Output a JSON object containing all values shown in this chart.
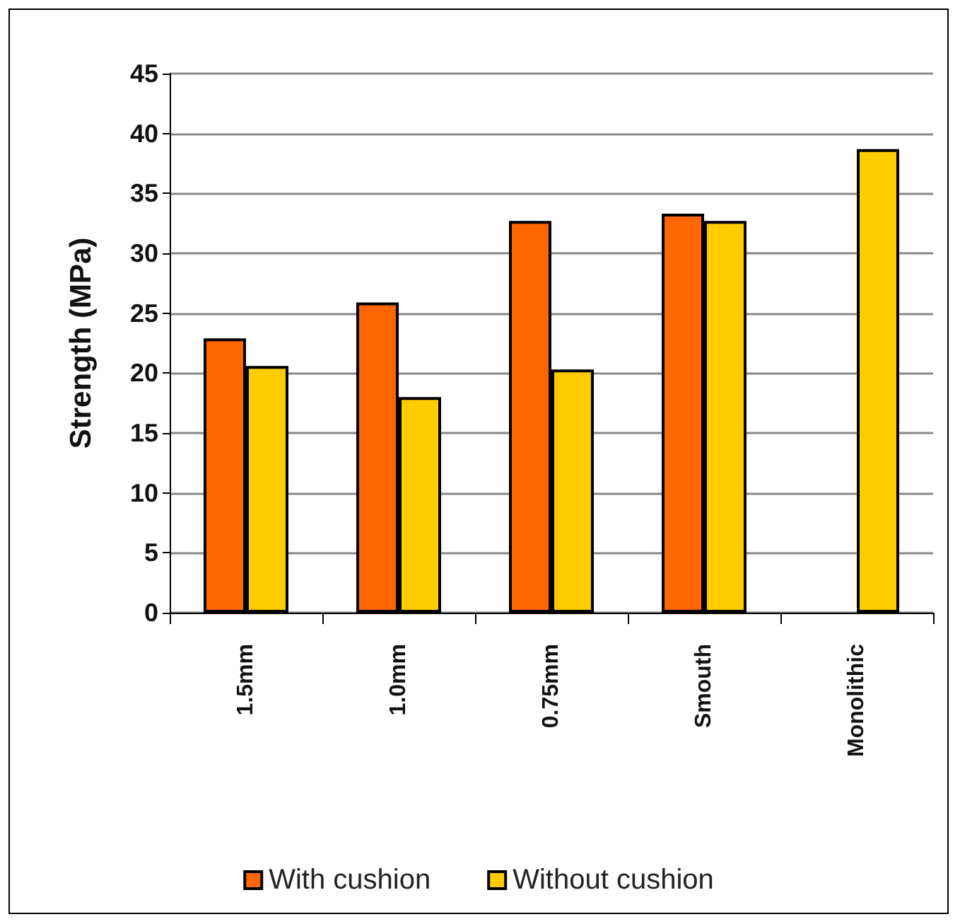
{
  "chart_data": {
    "type": "bar",
    "ylabel": "Strength (MPa)",
    "categories": [
      "1.5mm",
      "1.0mm",
      "0.75mm",
      "Smouth",
      "Monolithic"
    ],
    "series": [
      {
        "name": "With cushion",
        "color": "#ff6600",
        "values": [
          22.9,
          25.9,
          32.7,
          33.3,
          null
        ]
      },
      {
        "name": "Without cushion",
        "color": "#ffcc00",
        "values": [
          20.6,
          18.0,
          20.3,
          32.7,
          38.7
        ]
      }
    ],
    "ylim": [
      0,
      45
    ],
    "yticks": [
      0,
      5,
      10,
      15,
      20,
      25,
      30,
      35,
      40,
      45
    ],
    "grid": "y",
    "legend": "bottom"
  }
}
